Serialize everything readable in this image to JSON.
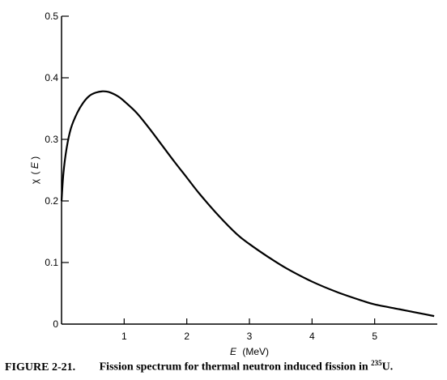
{
  "chart_data": {
    "type": "line",
    "xlabel_var": "E",
    "xlabel_unit": "(MeV)",
    "ylabel_sym": "χ",
    "ylabel_var": "E",
    "xlim": [
      0,
      6.0
    ],
    "ylim": [
      0,
      0.5
    ],
    "x_ticks": [
      1,
      2,
      3,
      4,
      5
    ],
    "y_ticks": [
      0,
      0.1,
      0.2,
      0.3,
      0.4,
      0.5
    ],
    "x_tick_labels": [
      "1",
      "2",
      "3",
      "4",
      "5"
    ],
    "y_tick_labels": [
      "0",
      "0.1",
      "0.2",
      "0.3",
      "0.4",
      "0.5"
    ],
    "grid": false,
    "series": [
      {
        "x": [
          0.0,
          0.03,
          0.08,
          0.15,
          0.25,
          0.35,
          0.45,
          0.55,
          0.65,
          0.75,
          0.9,
          1.0,
          1.2,
          1.4,
          1.6,
          1.8,
          2.0,
          2.2,
          2.5,
          2.8,
          3.0,
          3.3,
          3.6,
          4.0,
          4.4,
          4.8,
          5.0,
          5.4,
          5.8,
          5.95
        ],
        "y": [
          0.2,
          0.245,
          0.285,
          0.318,
          0.343,
          0.36,
          0.371,
          0.376,
          0.378,
          0.377,
          0.37,
          0.362,
          0.343,
          0.318,
          0.291,
          0.264,
          0.238,
          0.212,
          0.177,
          0.146,
          0.13,
          0.109,
          0.09,
          0.069,
          0.052,
          0.038,
          0.032,
          0.024,
          0.016,
          0.013
        ],
        "color": "#000000"
      }
    ]
  },
  "caption": {
    "figure_number": "FIGURE 2-21.",
    "text": "Fission spectrum for thermal neutron induced fission in",
    "isotope_mass": "235",
    "isotope_symbol": "U."
  }
}
